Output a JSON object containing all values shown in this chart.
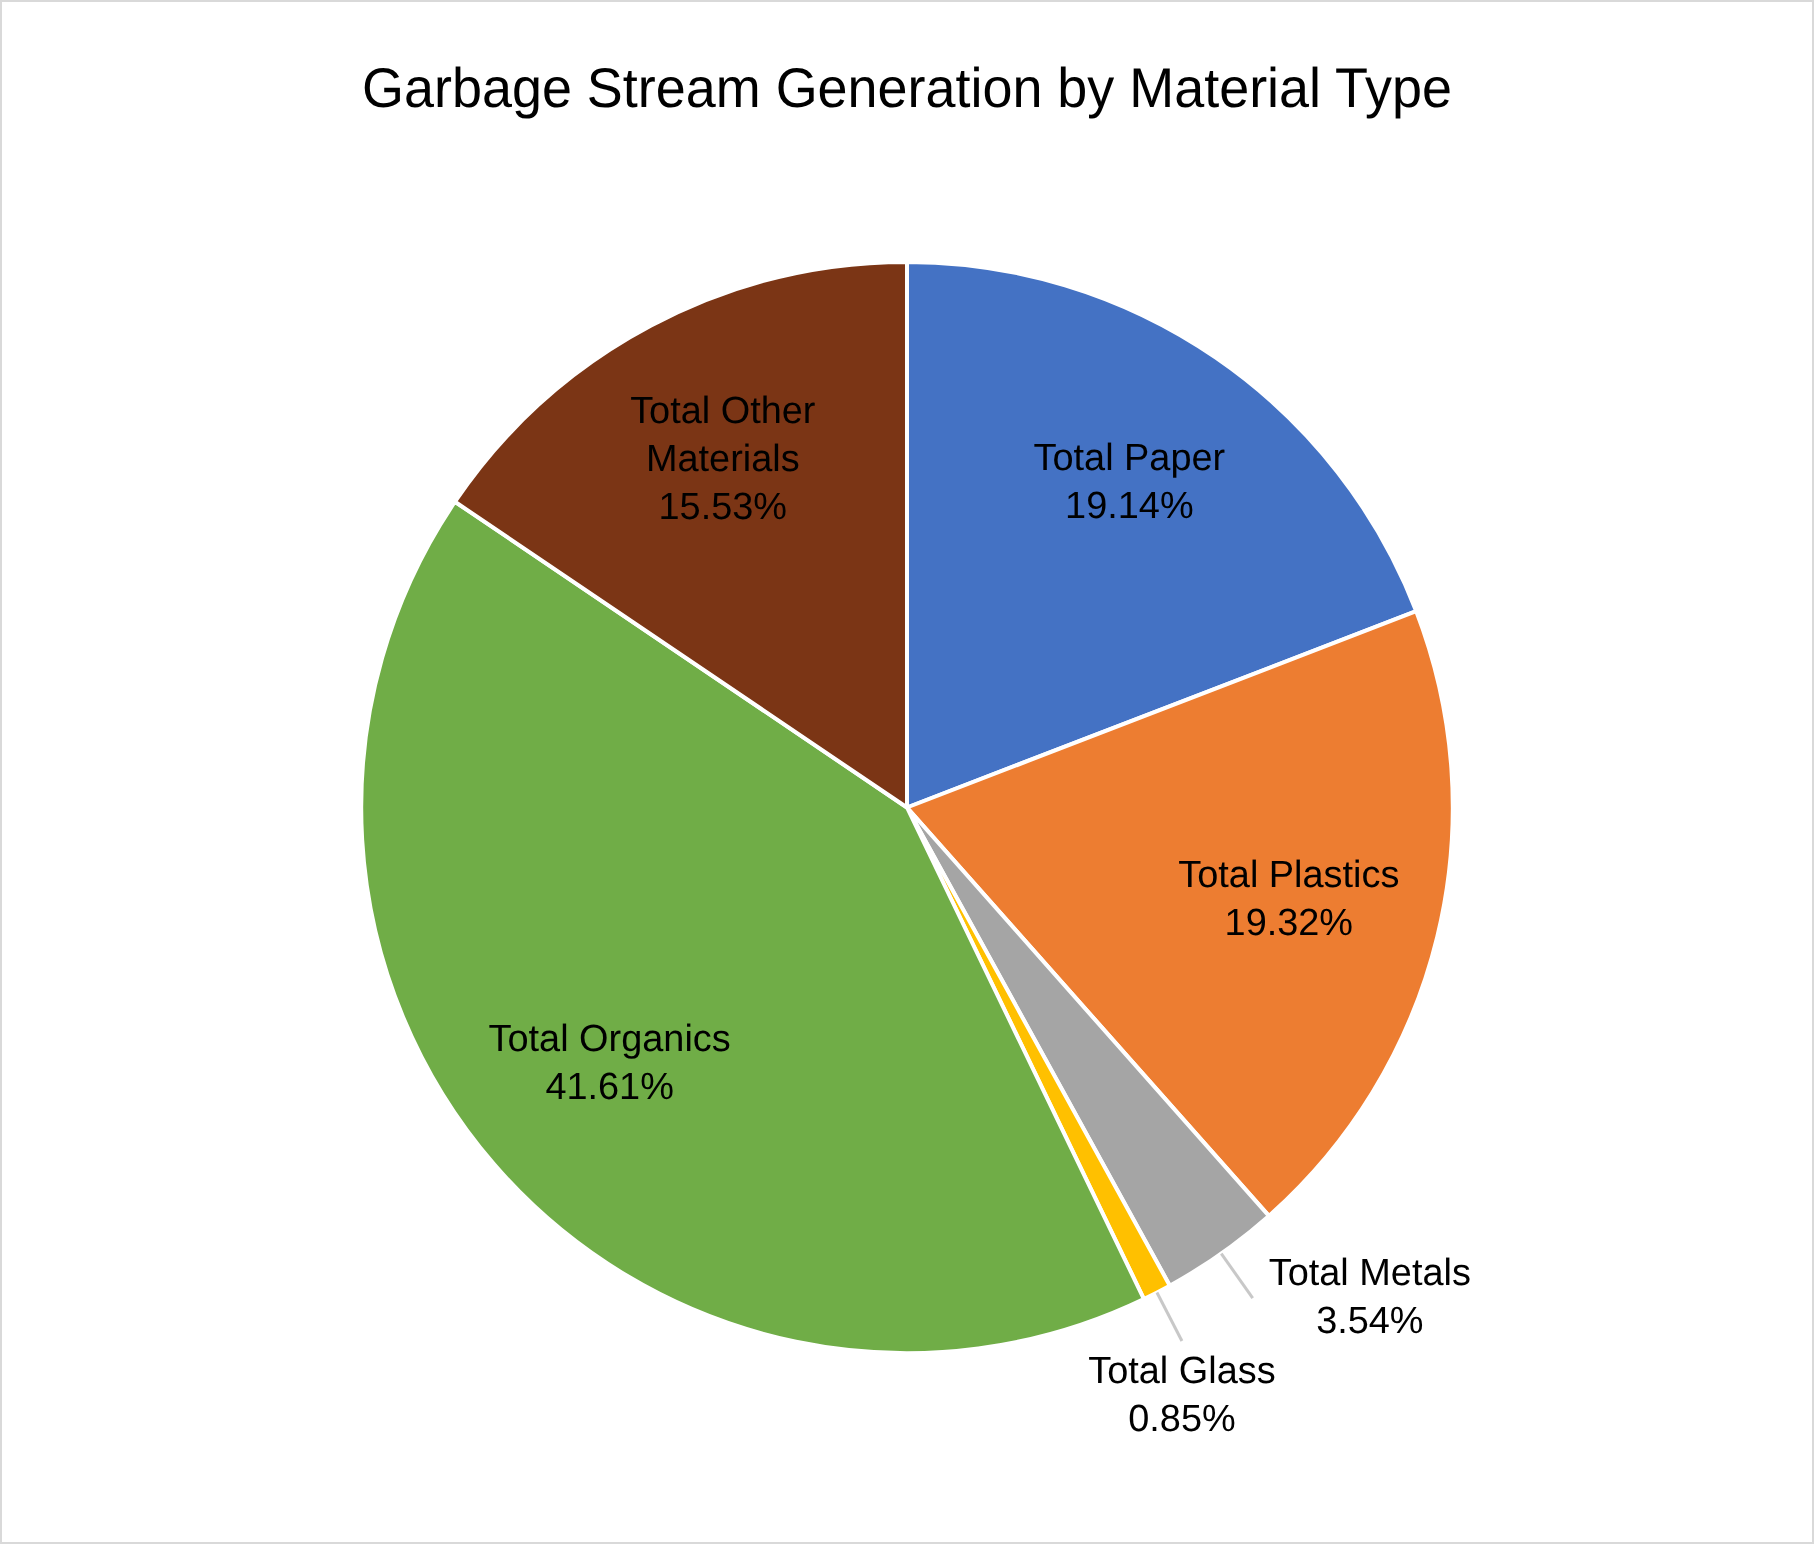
{
  "chart_data": {
    "type": "pie",
    "title": "Garbage Stream Generation by Material Type",
    "categories": [
      "Total Paper",
      "Total Plastics",
      "Total Metals",
      "Total Glass",
      "Total Organics",
      "Total Other Materials"
    ],
    "values": [
      19.14,
      19.32,
      3.54,
      0.85,
      41.61,
      15.53
    ],
    "value_labels": [
      "19.14%",
      "19.32%",
      "3.54%",
      "0.85%",
      "41.61%",
      "15.53%"
    ],
    "colors": [
      "#4472c4",
      "#ed7d31",
      "#a5a5a5",
      "#ffc000",
      "#70ad47",
      "#7b3515"
    ],
    "legend": false,
    "data_labels": true
  }
}
